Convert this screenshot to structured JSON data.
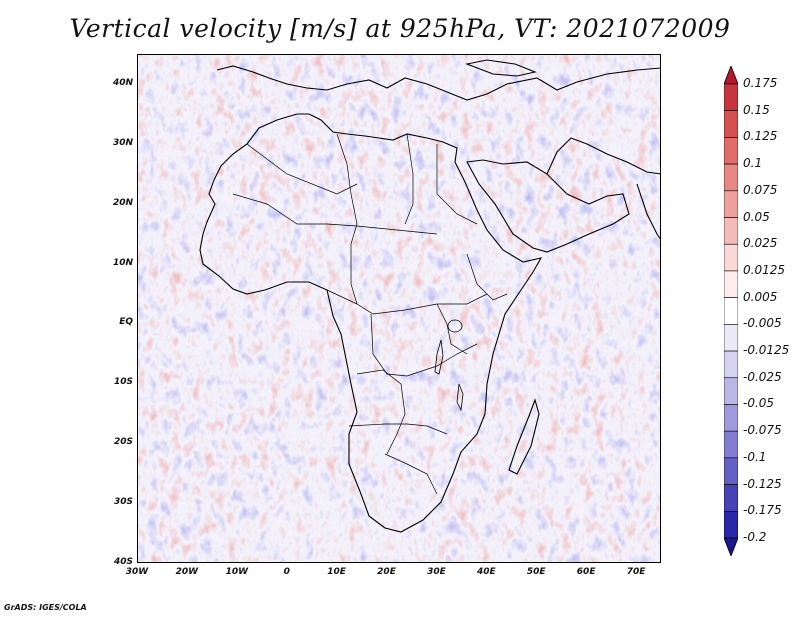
{
  "title": "Vertical velocity [m/s] at 925hPa, VT: 2021072009",
  "footer": "GrADS: IGES/COLA",
  "map": {
    "projection": "lat-lon",
    "lon_range": [
      -30,
      75
    ],
    "lat_range": [
      -40,
      45
    ],
    "lat_labels": [
      "40N",
      "30N",
      "20N",
      "10N",
      "EQ",
      "10S",
      "20S",
      "30S",
      "40S"
    ],
    "lat_values": [
      40,
      30,
      20,
      10,
      0,
      -10,
      -20,
      -30,
      -40
    ],
    "lon_labels": [
      "30W",
      "20W",
      "10W",
      "0",
      "10E",
      "20E",
      "30E",
      "40E",
      "50E",
      "60E",
      "70E"
    ],
    "lon_values": [
      -30,
      -20,
      -10,
      0,
      10,
      20,
      30,
      40,
      50,
      60,
      70
    ]
  },
  "colorbar": {
    "levels": [
      "0.175",
      "0.15",
      "0.125",
      "0.1",
      "0.075",
      "0.05",
      "0.025",
      "0.0125",
      "0.005",
      "-0.005",
      "-0.0125",
      "-0.025",
      "-0.05",
      "-0.075",
      "-0.1",
      "-0.125",
      "-0.175",
      "-0.2"
    ],
    "colors": [
      "#b2182b",
      "#c8343b",
      "#d6504f",
      "#e06b68",
      "#e88784",
      "#efa19e",
      "#f4bcb9",
      "#f9d8d6",
      "#fdeeed",
      "#ffffff",
      "#eceaf8",
      "#d6d2f0",
      "#bcb6e6",
      "#a09adc",
      "#827dd1",
      "#6460c5",
      "#4643b8",
      "#2a27a8",
      "#1c1890"
    ]
  },
  "colors": {
    "coastline": "#000000",
    "positive": "#e06060",
    "negative": "#6a6ae0"
  }
}
